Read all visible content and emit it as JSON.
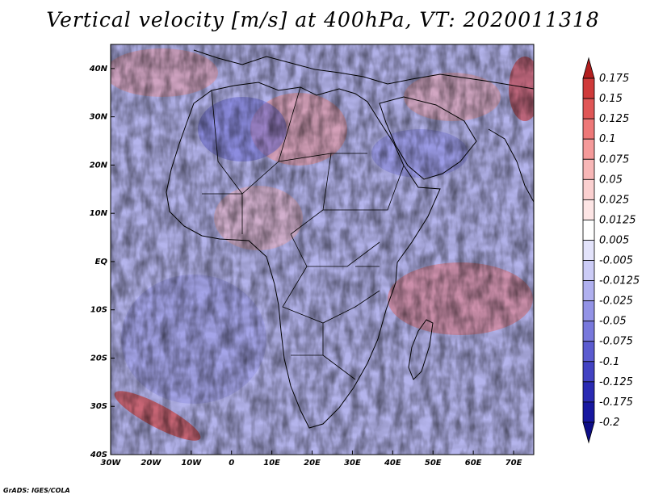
{
  "title": "Vertical velocity [m/s] at 400hPa, VT: 2020011318",
  "credit": "GrADS: IGES/COLA",
  "map": {
    "variable": "Vertical velocity",
    "units": "m/s",
    "level": "400hPa",
    "valid_time": "2020011318",
    "lon_range": [
      -30,
      75
    ],
    "lat_range": [
      -40,
      45
    ],
    "lat_ticks": [
      "40N",
      "30N",
      "20N",
      "10N",
      "EQ",
      "10S",
      "20S",
      "30S",
      "40S"
    ],
    "lon_ticks": [
      "30W",
      "20W",
      "10W",
      "0",
      "10E",
      "20E",
      "30E",
      "40E",
      "50E",
      "60E",
      "70E"
    ]
  },
  "colorbar": {
    "labels": [
      "0.175",
      "0.15",
      "0.125",
      "0.1",
      "0.075",
      "0.05",
      "0.025",
      "0.0125",
      "0.005",
      "-0.005",
      "-0.0125",
      "-0.025",
      "-0.05",
      "-0.075",
      "-0.1",
      "-0.125",
      "-0.175",
      "-0.2"
    ],
    "colors": [
      "#b21e1e",
      "#cf3a3a",
      "#e05656",
      "#ee7878",
      "#f59a9a",
      "#f8b7b7",
      "#fbd0d0",
      "#fde5e5",
      "#ffffff",
      "#e3e3fb",
      "#ccccf6",
      "#b0b0ef",
      "#9393e6",
      "#7878dc",
      "#5b5bd0",
      "#4242c3",
      "#2a2ab3",
      "#1717a0",
      "#0d0d86"
    ]
  }
}
